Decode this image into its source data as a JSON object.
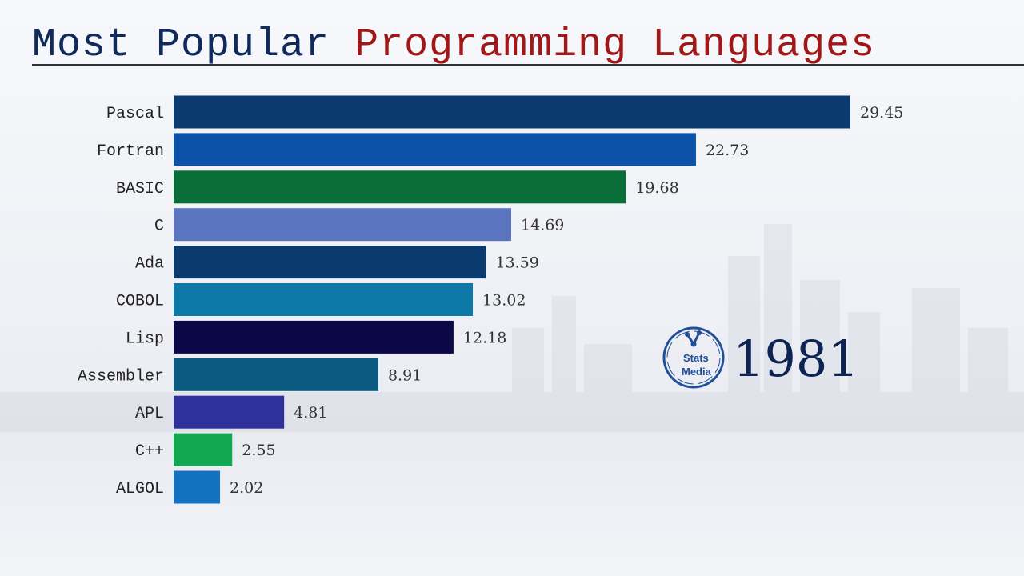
{
  "title": {
    "part1": "Most Popular ",
    "part2": "Programming Languages"
  },
  "year": "1981",
  "logo": {
    "line1": "Stats",
    "line2": "Media"
  },
  "chart_data": {
    "type": "bar",
    "orientation": "horizontal",
    "title": "Most Popular Programming Languages",
    "categories": [
      "Pascal",
      "Fortran",
      "BASIC",
      "C",
      "Ada",
      "COBOL",
      "Lisp",
      "Assembler",
      "APL",
      "C++",
      "ALGOL"
    ],
    "values": [
      29.45,
      22.73,
      19.68,
      14.69,
      13.59,
      13.02,
      12.18,
      8.91,
      4.81,
      2.55,
      2.02
    ],
    "colors": [
      "#0a3a6e",
      "#0b52a8",
      "#0a6e38",
      "#5b74c0",
      "#0a3a6e",
      "#0b78a8",
      "#0c0848",
      "#0b5a80",
      "#30309a",
      "#10a850",
      "#1470c0"
    ],
    "xlim": [
      0,
      29.45
    ],
    "grid": false,
    "data_labels": true
  }
}
